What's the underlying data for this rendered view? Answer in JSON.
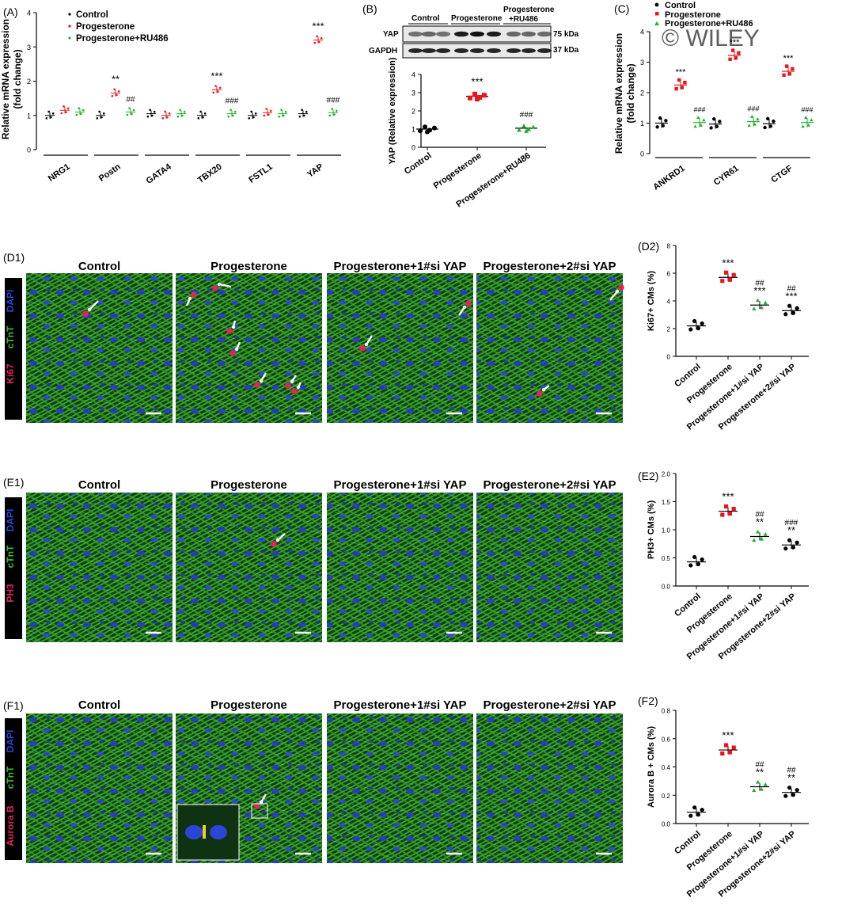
{
  "watermark": "© WILEY",
  "panels": {
    "A": "(A)",
    "B": "(B)",
    "C": "(C)",
    "D1": "(D1)",
    "D2": "(D2)",
    "E1": "(E1)",
    "E2": "(E2)",
    "F1": "(F1)",
    "F2": "(F2)"
  },
  "legend": {
    "control": "Control",
    "progesterone": "Progesterone",
    "ru486": "Progesterone+RU486"
  },
  "colors": {
    "control": "#000000",
    "progesterone": "#e8161c",
    "ru486": "#1fae2e",
    "cTnT": "#3dbb2a",
    "DAPI": "#2a45d8",
    "marker": "#e0245e"
  },
  "blot": {
    "groups": [
      "Control",
      "Progesterone",
      "Progesterone\n+RU486"
    ],
    "group_line1": [
      "Control",
      "Progesterone",
      "Progesterone"
    ],
    "group_line2": [
      "",
      "",
      "+RU486"
    ],
    "rows": [
      {
        "protein": "YAP",
        "size": "75 kDa"
      },
      {
        "protein": "GAPDH",
        "size": "37 kDa"
      }
    ]
  },
  "microscopy": {
    "columns": [
      "Control",
      "Progesterone",
      "Progesterone+1#si YAP",
      "Progesterone+2#si YAP"
    ],
    "stains": {
      "D1": [
        "DAPI",
        "cTnT",
        "Ki67"
      ],
      "E1": [
        "DAPI",
        "cTnT",
        "PH3"
      ],
      "F1": [
        "DAPI",
        "cTnT",
        "Aurora B"
      ]
    }
  },
  "chart_data": [
    {
      "panel": "A",
      "type": "scatter",
      "ylabel": "Relative mRNA expression\n(fold change)",
      "ylabel_lines": [
        "Relative mRNA expression",
        "(fold change)"
      ],
      "ylim": [
        0,
        4
      ],
      "yticks": [
        "0",
        "1",
        "2",
        "3",
        "4"
      ],
      "categories": [
        "NRG1",
        "Postn",
        "GATA4",
        "TBX20",
        "FSTL1",
        "YAP"
      ],
      "series": [
        {
          "name": "Control",
          "values": [
            1.0,
            1.0,
            1.05,
            1.0,
            1.0,
            1.05
          ]
        },
        {
          "name": "Progesterone",
          "values": [
            1.15,
            1.65,
            1.0,
            1.75,
            1.08,
            3.2
          ]
        },
        {
          "name": "Progesterone+RU486",
          "values": [
            1.1,
            1.1,
            1.05,
            1.05,
            1.05,
            1.08
          ]
        }
      ],
      "annotations": [
        {
          "category": "Postn",
          "series": 1,
          "text": "**"
        },
        {
          "category": "Postn",
          "series": 2,
          "text": "##"
        },
        {
          "category": "TBX20",
          "series": 1,
          "text": "***"
        },
        {
          "category": "TBX20",
          "series": 2,
          "text": "###"
        },
        {
          "category": "YAP",
          "series": 1,
          "text": "***"
        },
        {
          "category": "YAP",
          "series": 2,
          "text": "###"
        }
      ]
    },
    {
      "panel": "B",
      "type": "scatter",
      "ylabel": "YAP (Relative expression)",
      "ylim": [
        0,
        4
      ],
      "yticks": [
        "0",
        "1",
        "2",
        "3",
        "4"
      ],
      "categories": [
        "Control",
        "Progesterone",
        "Progesterone+RU486"
      ],
      "values": [
        1.0,
        2.8,
        1.05
      ],
      "annotations": [
        {
          "category": "Progesterone",
          "text": "***"
        },
        {
          "category": "Progesterone+RU486",
          "text": "###"
        }
      ]
    },
    {
      "panel": "C",
      "type": "scatter",
      "ylabel": "Relative mRNA expression\n(fold change)",
      "ylabel_lines": [
        "Relative mRNA expression",
        "(fold change)"
      ],
      "ylim": [
        0,
        4
      ],
      "yticks": [
        "0",
        "1",
        "2",
        "3",
        "4"
      ],
      "categories": [
        "ANKRD1",
        "CYR61",
        "CTGF"
      ],
      "series": [
        {
          "name": "Control",
          "values": [
            1.0,
            0.97,
            0.98
          ]
        },
        {
          "name": "Progesterone",
          "values": [
            2.25,
            3.22,
            2.7
          ]
        },
        {
          "name": "Progesterone+RU486",
          "values": [
            1.02,
            1.05,
            1.02
          ]
        }
      ],
      "annotations": [
        {
          "category": "ANKRD1",
          "series": 1,
          "text": "***"
        },
        {
          "category": "ANKRD1",
          "series": 2,
          "text": "###"
        },
        {
          "category": "CYR61",
          "series": 1,
          "text": "***"
        },
        {
          "category": "CYR61",
          "series": 2,
          "text": "###"
        },
        {
          "category": "CTGF",
          "series": 1,
          "text": "***"
        },
        {
          "category": "CTGF",
          "series": 2,
          "text": "###"
        }
      ]
    },
    {
      "panel": "D2",
      "type": "scatter",
      "ylabel": "Ki67+ CMs (%)",
      "ylim": [
        0,
        8
      ],
      "yticks": [
        "0",
        "2",
        "4",
        "6",
        "8"
      ],
      "categories": [
        "Control",
        "Progesterone",
        "Progesterone+1#si YAP",
        "Progesterone+2#si YAP"
      ],
      "values": [
        2.2,
        5.7,
        3.7,
        3.3
      ],
      "annotations": [
        {
          "category": "Progesterone",
          "lines": [
            "***"
          ]
        },
        {
          "category": "Progesterone+1#si YAP",
          "lines": [
            "##",
            "***"
          ]
        },
        {
          "category": "Progesterone+2#si YAP",
          "lines": [
            "##",
            "***"
          ]
        }
      ]
    },
    {
      "panel": "E2",
      "type": "scatter",
      "ylabel": "PH3+ CMs (%)",
      "ylim": [
        0,
        2.0
      ],
      "yticks": [
        "0.0",
        "0.5",
        "1.0",
        "1.5",
        "2.0"
      ],
      "categories": [
        "Control",
        "Progesterone",
        "Progesterone+1#si YAP",
        "Progesterone+2#si YAP"
      ],
      "values": [
        0.43,
        1.33,
        0.88,
        0.73
      ],
      "annotations": [
        {
          "category": "Progesterone",
          "lines": [
            "***"
          ]
        },
        {
          "category": "Progesterone+1#si YAP",
          "lines": [
            "##",
            "**"
          ]
        },
        {
          "category": "Progesterone+2#si YAP",
          "lines": [
            "###",
            "**"
          ]
        }
      ]
    },
    {
      "panel": "F2",
      "type": "scatter",
      "ylabel": "Aurora B + CMs (%)",
      "ylim": [
        0,
        0.8
      ],
      "yticks": [
        "0.0",
        "0.2",
        "0.4",
        "0.6",
        "0.8"
      ],
      "categories": [
        "Control",
        "Progesterone",
        "Progesterone+1#si YAP",
        "Progesterone+2#si YAP"
      ],
      "values": [
        0.08,
        0.52,
        0.26,
        0.22
      ],
      "annotations": [
        {
          "category": "Progesterone",
          "lines": [
            "***"
          ]
        },
        {
          "category": "Progesterone+1#si YAP",
          "lines": [
            "##",
            "**"
          ]
        },
        {
          "category": "Progesterone+2#si YAP",
          "lines": [
            "##",
            "**"
          ]
        }
      ]
    }
  ]
}
